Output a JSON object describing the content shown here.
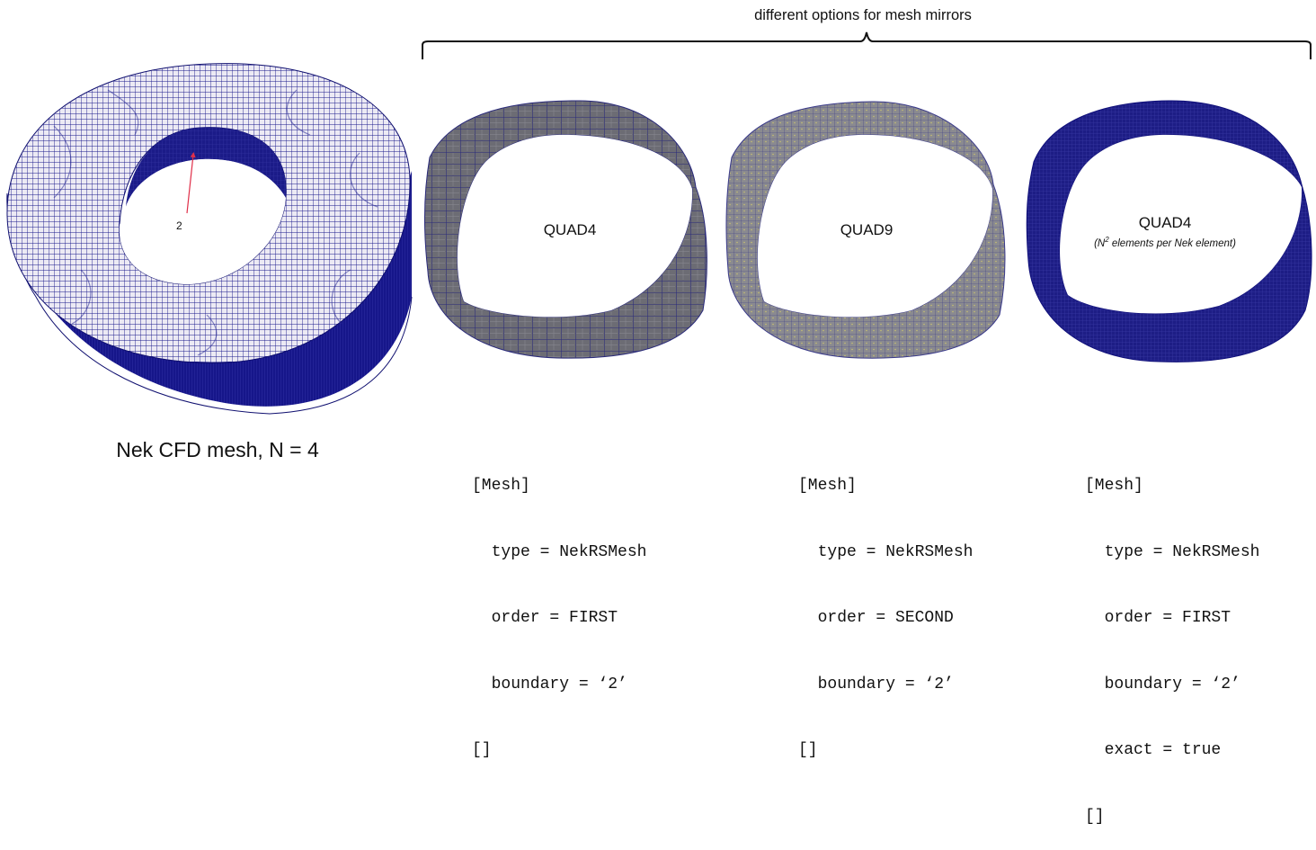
{
  "header": {
    "title": "different options for mesh mirrors"
  },
  "main_mesh": {
    "caption": "Nek CFD mesh, N = 4",
    "boundary_label": "2"
  },
  "mirrors": [
    {
      "label": "QUAD4",
      "note": "",
      "code": [
        "[Mesh]",
        "  type = NekRSMesh",
        "  order = FIRST",
        "  boundary = ‘2’",
        "[]"
      ]
    },
    {
      "label": "QUAD9",
      "note": "",
      "code": [
        "[Mesh]",
        "  type = NekRSMesh",
        "  order = SECOND",
        "  boundary = ‘2’",
        "[]"
      ]
    },
    {
      "label": "QUAD4",
      "note_prefix": "(N",
      "note_sup": "2",
      "note_suffix": " elements per Nek element)",
      "code": [
        "[Mesh]",
        "  type = NekRSMesh",
        "  order = FIRST",
        "  boundary = ‘2’",
        "  exact = true",
        "[]"
      ]
    }
  ],
  "colors": {
    "mesh_line": "#1a1a8c",
    "mesh_face": "#e8e8f4",
    "mirror_face_1": "#6e6e78",
    "mirror_face_2": "#8a8a90",
    "mirror_face_3": "#1d1d85",
    "arrow": "#e0304a"
  }
}
